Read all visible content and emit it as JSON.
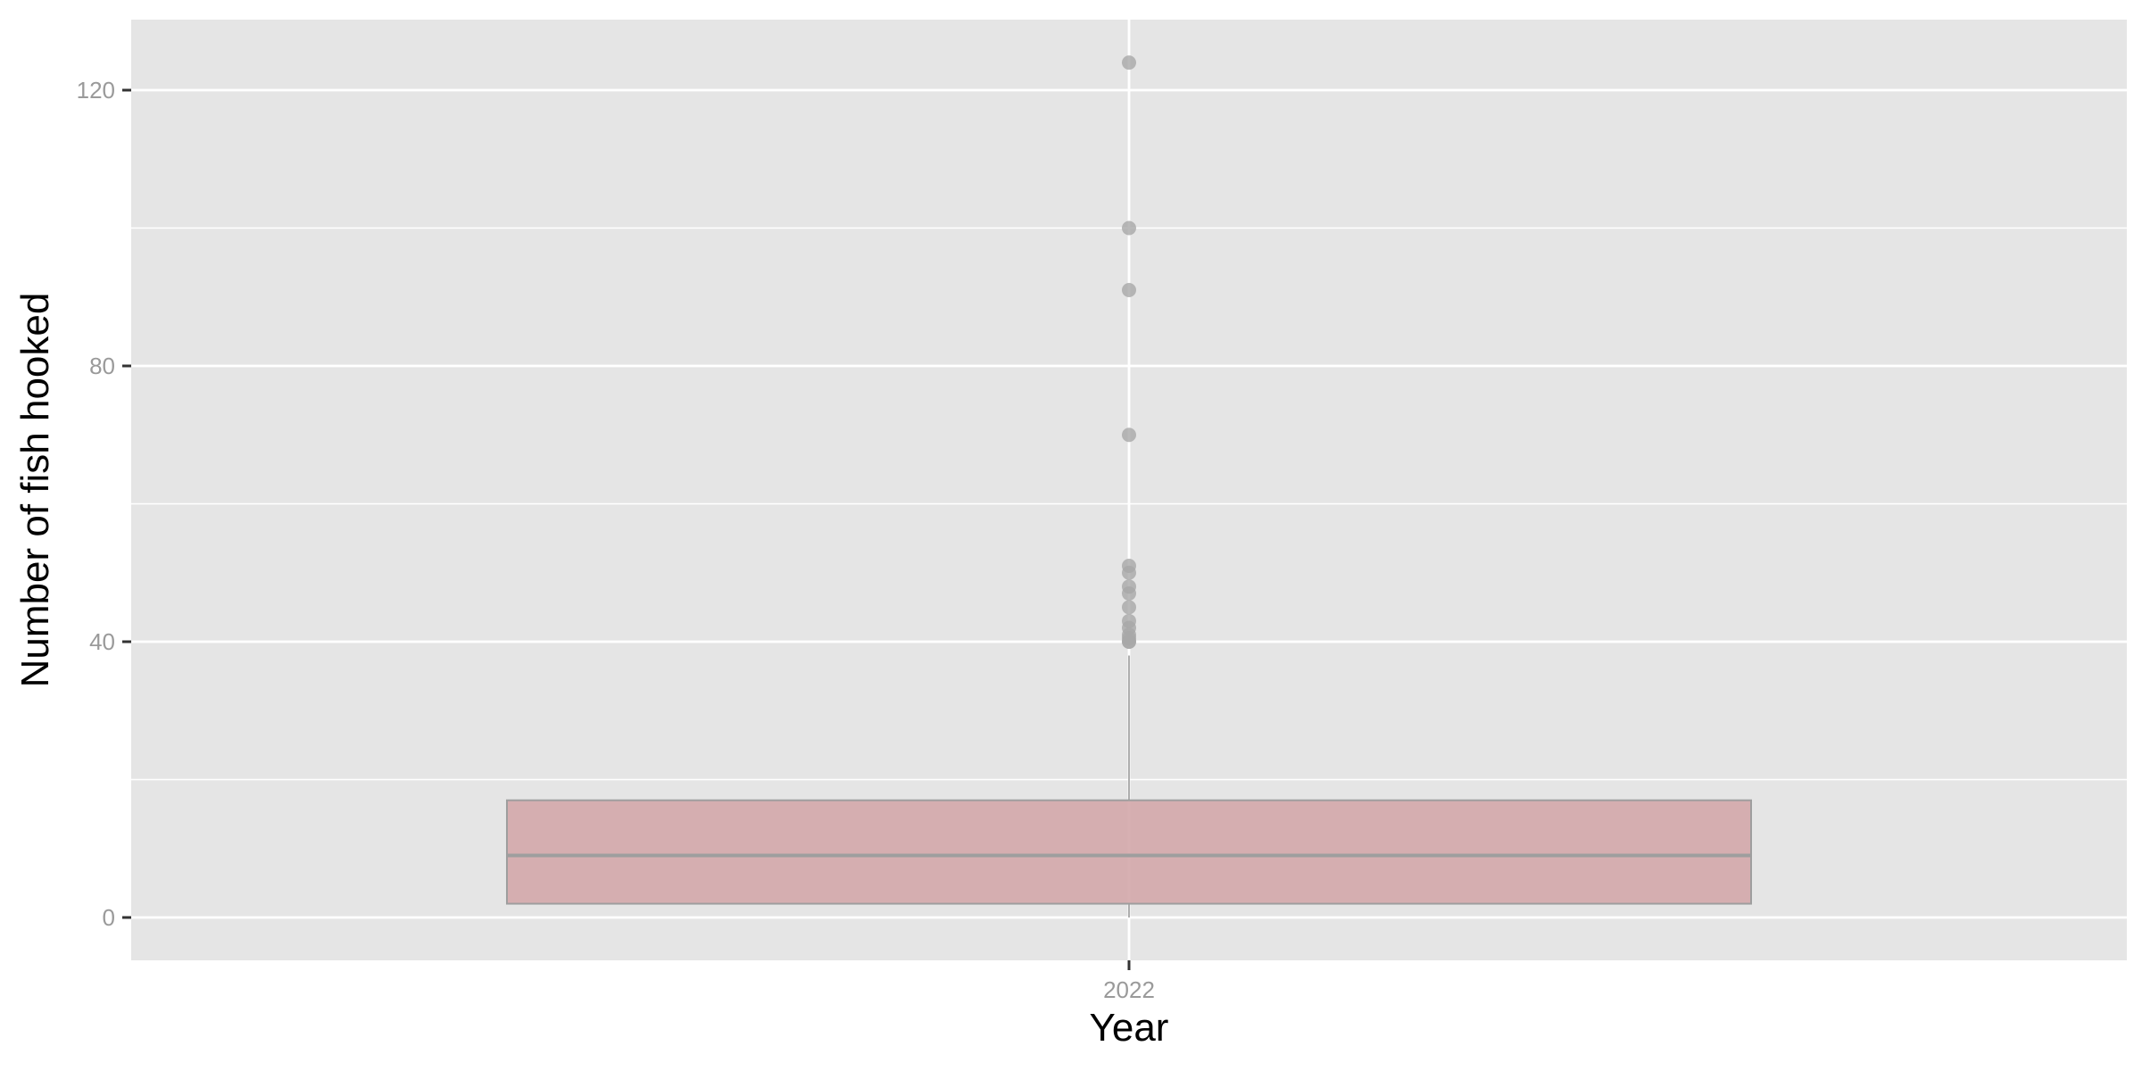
{
  "chart_data": {
    "type": "boxplot",
    "title": "",
    "xlabel": "Year",
    "ylabel": "Number of fish hooked",
    "categories": [
      "2022"
    ],
    "ylim": [
      -6.2,
      130.5
    ],
    "yticks": [
      0,
      40,
      80,
      120
    ],
    "grid": true,
    "legend": "none",
    "boxes": [
      {
        "category": "2022",
        "whisker_low": 0,
        "q1": 2,
        "median": 9,
        "q3": 17,
        "whisker_high": 38,
        "outliers": [
          40,
          40,
          40.5,
          41,
          42,
          43,
          45,
          47,
          48,
          50,
          51,
          70,
          91,
          100,
          124
        ]
      }
    ],
    "colors": {
      "panel": "#e5e5e5",
      "grid": "#ffffff",
      "box_fill": "#d4a9ab",
      "box_stroke": "#9e9e9e",
      "outlier": "#a8a8a8",
      "whisker": "#8c8c8c"
    }
  }
}
